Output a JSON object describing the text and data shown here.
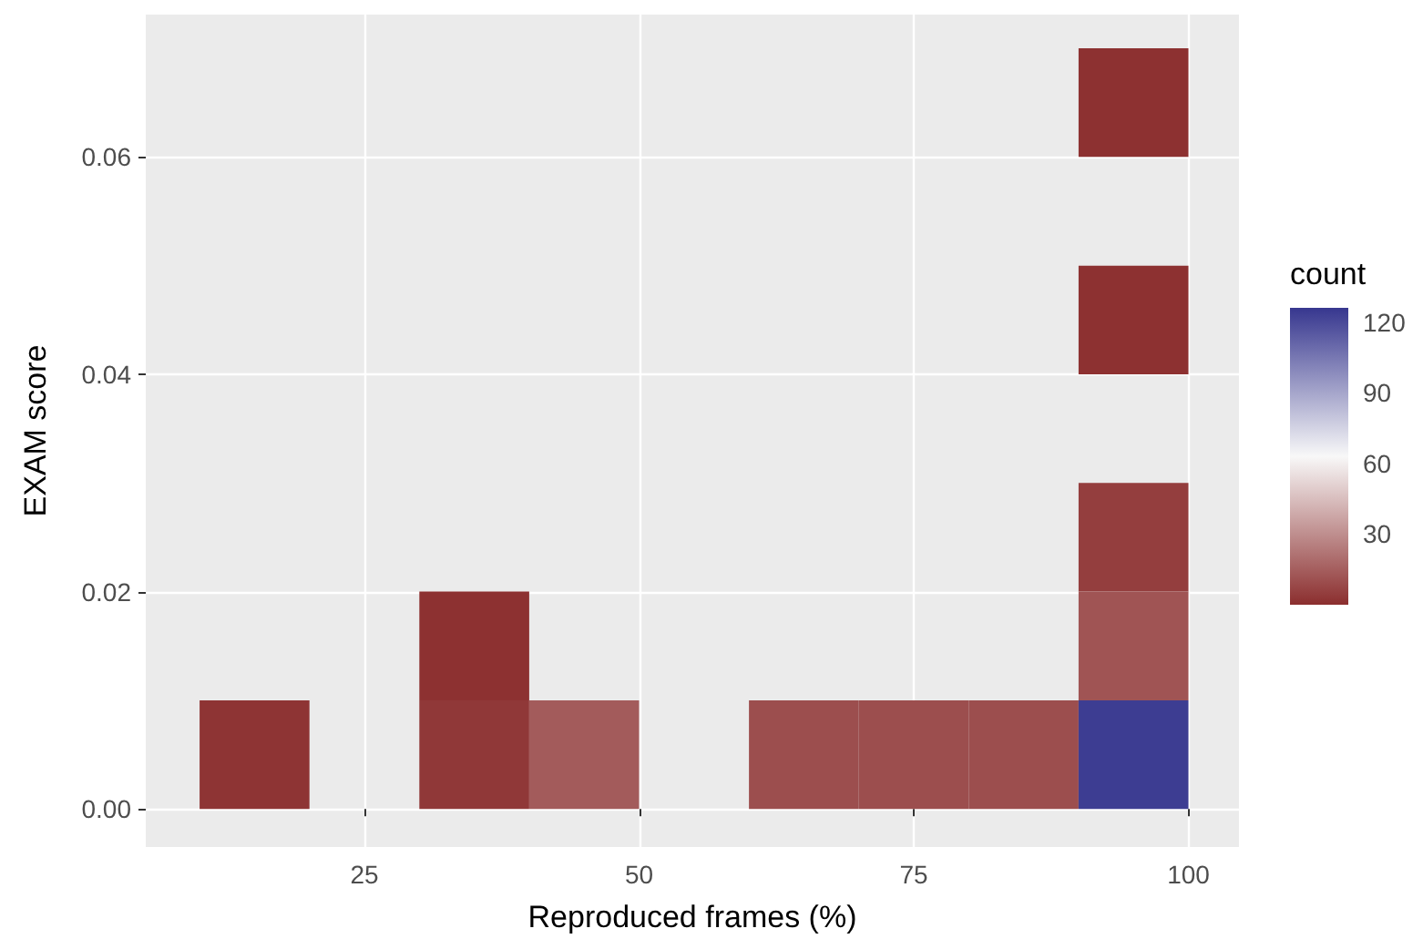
{
  "chart_data": {
    "type": "heatmap",
    "xlabel": "Reproduced frames (%)",
    "ylabel": "EXAM score",
    "legend_title": "count",
    "x": [
      15,
      25,
      35,
      45,
      55,
      65,
      75,
      85,
      95
    ],
    "y": [
      0.065,
      0.045,
      0.025,
      0.015,
      0.005
    ],
    "cells": [
      [
        null,
        null,
        null,
        null,
        null,
        null,
        null,
        null,
        1
      ],
      [
        null,
        null,
        null,
        null,
        null,
        null,
        null,
        null,
        1
      ],
      [
        null,
        null,
        null,
        null,
        null,
        null,
        null,
        null,
        5
      ],
      [
        null,
        null,
        1,
        null,
        null,
        null,
        null,
        null,
        12
      ],
      [
        2,
        null,
        3,
        14,
        null,
        10,
        10,
        10,
        124
      ]
    ],
    "colors": [
      "#8b2e2e",
      "#f8f8f8",
      "#37378f"
    ],
    "clim": [
      0,
      126
    ],
    "cticks": [
      30,
      60,
      90,
      120
    ],
    "xlim": [
      5.1,
      104.6
    ],
    "xticks": [
      25,
      50,
      75,
      100
    ],
    "ylim": [
      -0.0035,
      0.0731
    ],
    "yticks": [
      {
        "value": 0,
        "label": "0.00"
      },
      {
        "value": 0.02,
        "label": "0.02"
      },
      {
        "value": 0.04,
        "label": "0.04"
      },
      {
        "value": 0.06,
        "label": "0.06"
      }
    ],
    "grid": true
  }
}
